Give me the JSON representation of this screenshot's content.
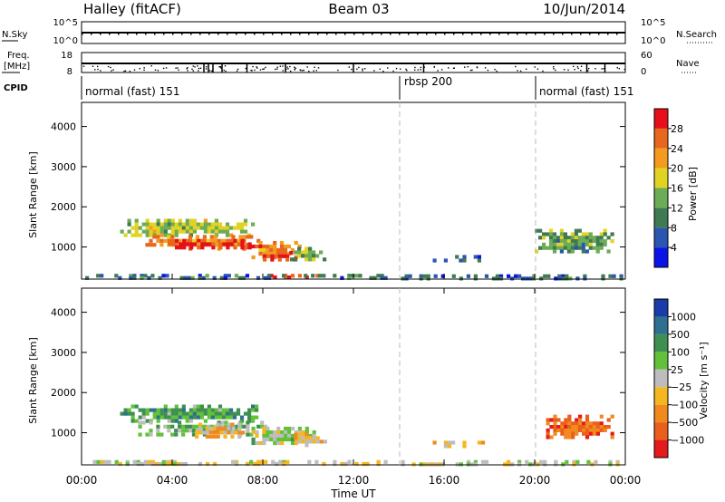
{
  "header": {
    "station": "Halley (fitACF)",
    "beam": "Beam 03",
    "date": "10/Jun/2014"
  },
  "noise_panel": {
    "left_label": "N.Sky",
    "right_label": "N.Search",
    "tick_top": "10^5",
    "tick_bottom": "10^0",
    "right_tick_top": "10^5",
    "right_tick_bottom": "10^0"
  },
  "freq_panel": {
    "left_label_1": "Freq.",
    "left_label_2": "[MHz]",
    "tick_top": "18",
    "tick_bottom": "8",
    "right_label": "Nave",
    "right_tick_top": "60",
    "right_tick_bottom": "0"
  },
  "cpid_panel": {
    "label": "CPID",
    "segments": [
      {
        "start_hour": 0,
        "name": "normal (fast) 151"
      },
      {
        "start_hour": 14,
        "name": "rbsp 200"
      },
      {
        "start_hour": 20,
        "name": "normal (fast) 151"
      }
    ]
  },
  "chart_data": [
    {
      "type": "heatmap",
      "name": "power",
      "ylabel": "Slant Range [km]",
      "xlabel": "",
      "ylim": [
        200,
        4600
      ],
      "y_ticks": [
        "1000",
        "2000",
        "3000",
        "4000"
      ],
      "xlim_hours": [
        0,
        24
      ],
      "mode_change_hours": [
        14,
        20
      ],
      "colorbar": {
        "label": "Power [dB]",
        "ticks": [
          "4",
          "8",
          "12",
          "16",
          "20",
          "24",
          "28"
        ],
        "range": [
          0,
          32
        ],
        "colors": [
          "#0a14e6",
          "#2a55b0",
          "#3f7a52",
          "#6cac57",
          "#e2d323",
          "#f29b1f",
          "#e8671e",
          "#e60f1a"
        ]
      },
      "echo_regions": [
        {
          "t0": 1.7,
          "t1": 7.8,
          "r0": 1250,
          "r1": 1700,
          "level": 3.5
        },
        {
          "t0": 2.5,
          "t1": 8.2,
          "r0": 900,
          "r1": 1300,
          "level": 5.2
        },
        {
          "t0": 3.8,
          "t1": 7.5,
          "r0": 950,
          "r1": 1200,
          "level": 6.6
        },
        {
          "t0": 7.5,
          "t1": 9.7,
          "r0": 700,
          "r1": 1150,
          "level": 5.5
        },
        {
          "t0": 8.0,
          "t1": 9.5,
          "r0": 650,
          "r1": 900,
          "level": 7.2
        },
        {
          "t0": 9.2,
          "t1": 10.8,
          "r0": 650,
          "r1": 1000,
          "level": 3.0
        },
        {
          "t0": 8.3,
          "t1": 10.8,
          "r0": 250,
          "r1": 330,
          "level": 7.1
        },
        {
          "t0": 0.0,
          "t1": 13.5,
          "r0": 220,
          "r1": 330,
          "level": 1.5
        },
        {
          "t0": 15.5,
          "t1": 17.8,
          "r0": 620,
          "r1": 800,
          "level": 1.2
        },
        {
          "t0": 20.0,
          "t1": 23.5,
          "r0": 850,
          "r1": 1450,
          "level": 2.6
        },
        {
          "t0": 14.1,
          "t1": 23.9,
          "r0": 200,
          "r1": 320,
          "level": 1.4
        }
      ]
    },
    {
      "type": "heatmap",
      "name": "velocity",
      "ylabel": "Slant Range [km]",
      "xlabel": "Time UT",
      "ylim": [
        200,
        4600
      ],
      "y_ticks": [
        "1000",
        "2000",
        "3000",
        "4000"
      ],
      "x_ticks": [
        "00:00",
        "04:00",
        "08:00",
        "12:00",
        "16:00",
        "20:00",
        "00:00"
      ],
      "xlim_hours": [
        0,
        24
      ],
      "mode_change_hours": [
        14,
        20
      ],
      "colorbar": {
        "label": "Velocity [m s⁻¹]",
        "ticks": [
          "1000",
          "500",
          "100",
          "25",
          "−25",
          "−100",
          "−500",
          "−1000"
        ],
        "colors": [
          "#1a3ca8",
          "#2f6f8f",
          "#3f8f52",
          "#62c13a",
          "#bdbdbd",
          "#f5b620",
          "#f08a1e",
          "#ea5f1c",
          "#e41a1c"
        ]
      },
      "echo_regions": [
        {
          "t0": 1.7,
          "t1": 7.8,
          "r0": 1250,
          "r1": 1700,
          "level": 2.4
        },
        {
          "t0": 2.5,
          "t1": 8.2,
          "r0": 900,
          "r1": 1300,
          "level": 3.0
        },
        {
          "t0": 5.0,
          "t1": 7.2,
          "r0": 850,
          "r1": 1250,
          "level": 5.3
        },
        {
          "t0": 7.5,
          "t1": 10.5,
          "r0": 700,
          "r1": 1150,
          "level": 3.6
        },
        {
          "t0": 9.2,
          "t1": 11.0,
          "r0": 650,
          "r1": 1000,
          "level": 4.8
        },
        {
          "t0": 0.5,
          "t1": 13.5,
          "r0": 220,
          "r1": 320,
          "level": 4.3
        },
        {
          "t0": 15.5,
          "t1": 17.8,
          "r0": 620,
          "r1": 800,
          "level": 4.6
        },
        {
          "t0": 20.5,
          "t1": 23.5,
          "r0": 850,
          "r1": 1450,
          "level": 7.0
        },
        {
          "t0": 14.1,
          "t1": 23.9,
          "r0": 200,
          "r1": 320,
          "level": 4.2
        }
      ]
    }
  ]
}
